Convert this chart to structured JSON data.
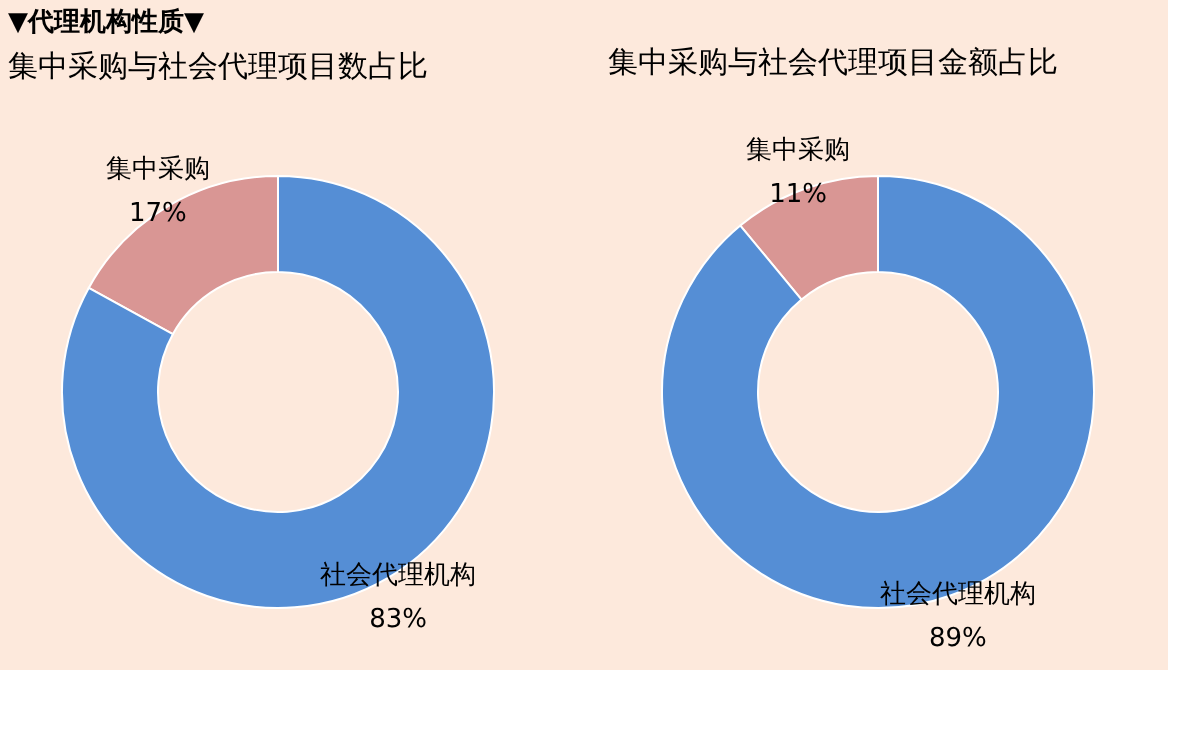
{
  "chart_data": [
    {
      "type": "donut",
      "title": "集中采购与社会代理项目数占比",
      "annotations": [
        "▼代理机构性质▼"
      ],
      "categories": [
        "集中采购",
        "社会代理机构"
      ],
      "values": [
        17,
        83
      ],
      "colors": [
        "#d99694",
        "#558ed5"
      ],
      "value_labels": [
        "17%",
        "83%"
      ],
      "legend": false
    },
    {
      "type": "donut",
      "title": "集中采购与社会代理项目金额占比",
      "categories": [
        "集中采购",
        "社会代理机构"
      ],
      "values": [
        11,
        89
      ],
      "colors": [
        "#d99694",
        "#558ed5"
      ],
      "value_labels": [
        "11%",
        "89%"
      ],
      "legend": false
    }
  ]
}
